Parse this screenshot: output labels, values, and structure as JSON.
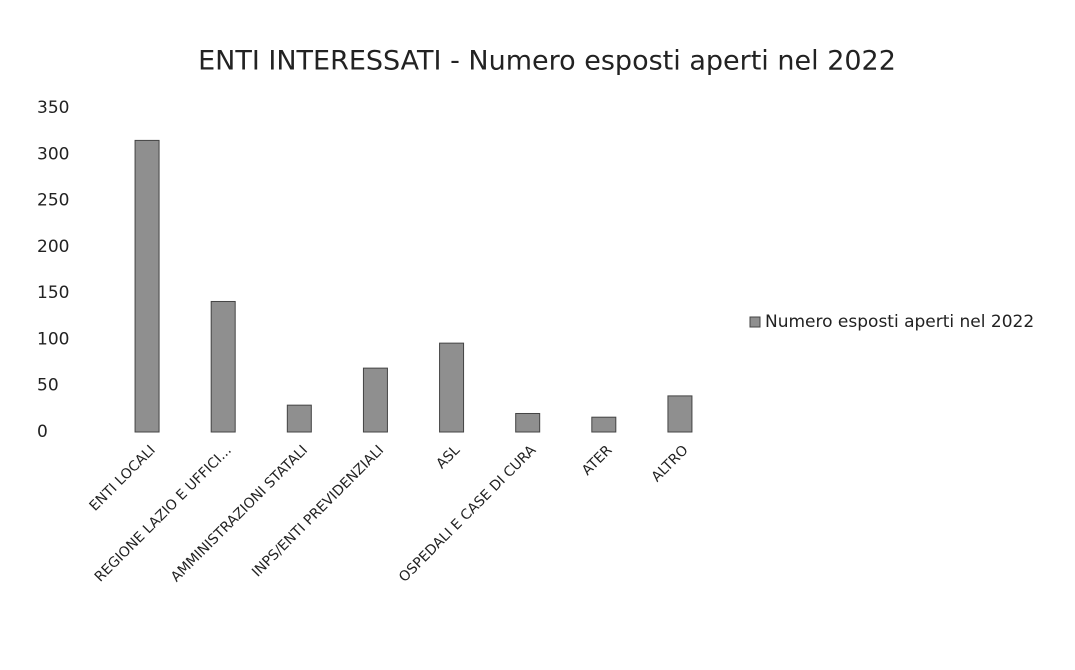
{
  "chart_data": {
    "type": "bar",
    "title": "ENTI INTERESSATI - Numero esposti aperti nel 2022",
    "categories": [
      "ENTI LOCALI",
      "REGIONE LAZIO E UFFICI...",
      "AMMINISTRAZIONI STATALI",
      "INPS/ENTI PREVIDENZIALI",
      "ASL",
      "OSPEDALI E CASE DI CURA",
      "ATER",
      "ALTRO"
    ],
    "series": [
      {
        "name": "Numero esposti aperti nel 2022",
        "color": "#8f8f8f",
        "values": [
          315,
          141,
          29,
          69,
          96,
          20,
          16,
          39
        ]
      }
    ],
    "ylim": [
      0,
      350
    ],
    "yticks": [
      0,
      50,
      100,
      150,
      200,
      250,
      300,
      350
    ],
    "grid": false,
    "legend": "right"
  }
}
